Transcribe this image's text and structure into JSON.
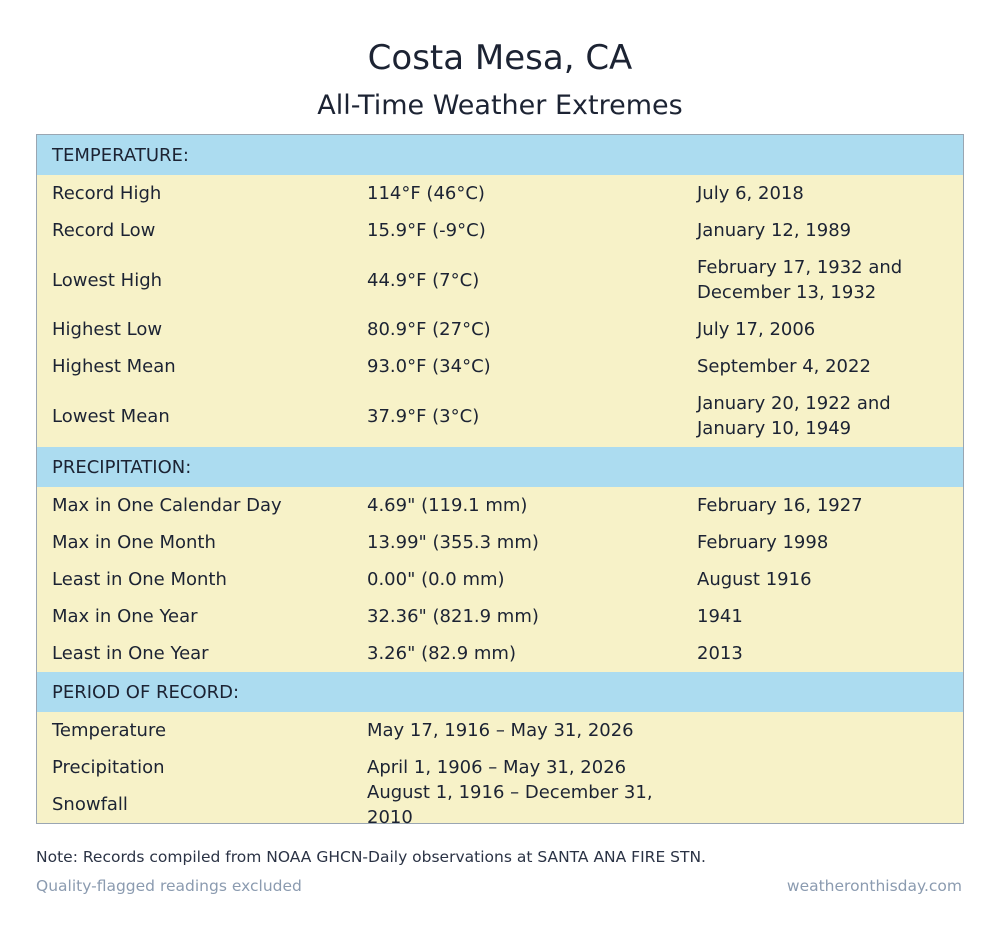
{
  "header": {
    "title": "Costa Mesa, CA",
    "subtitle": "All-Time Weather Extremes"
  },
  "table": {
    "sections": [
      {
        "heading": "TEMPERATURE:",
        "rows": [
          [
            "Record High",
            "114°F (46°C)",
            "July 6, 2018"
          ],
          [
            "Record Low",
            "15.9°F (-9°C)",
            "January 12, 1989"
          ],
          [
            "Lowest High",
            "44.9°F (7°C)",
            "February 17, 1932 and December 13, 1932"
          ],
          [
            "Highest Low",
            "80.9°F (27°C)",
            "July 17, 2006"
          ],
          [
            "Highest Mean",
            "93.0°F (34°C)",
            "September 4, 2022"
          ],
          [
            "Lowest Mean",
            "37.9°F (3°C)",
            "January 20, 1922 and January 10, 1949"
          ]
        ]
      },
      {
        "heading": "PRECIPITATION:",
        "rows": [
          [
            "Max in One Calendar Day",
            "4.69\" (119.1 mm)",
            "February 16, 1927"
          ],
          [
            "Max in One Month",
            "13.99\" (355.3 mm)",
            "February 1998"
          ],
          [
            "Least in One Month",
            "0.00\" (0.0 mm)",
            "August 1916"
          ],
          [
            "Max in One Year",
            "32.36\" (821.9 mm)",
            "1941"
          ],
          [
            "Least in One Year",
            "3.26\" (82.9 mm)",
            "2013"
          ]
        ]
      },
      {
        "heading": "PERIOD OF RECORD:",
        "rows": [
          [
            "Temperature",
            "May 17, 1916 – May 31, 2026"
          ],
          [
            "Precipitation",
            "April 1, 1906 – May 31, 2026"
          ],
          [
            "Snowfall",
            "August 1, 1916 – December 31, 2010"
          ]
        ]
      }
    ]
  },
  "note": "Note: Records compiled from NOAA GHCN-Daily observations at SANTA ANA FIRE STN.",
  "footer": {
    "left": "Quality-flagged readings excluded",
    "right": "weatheronthisday.com"
  }
}
